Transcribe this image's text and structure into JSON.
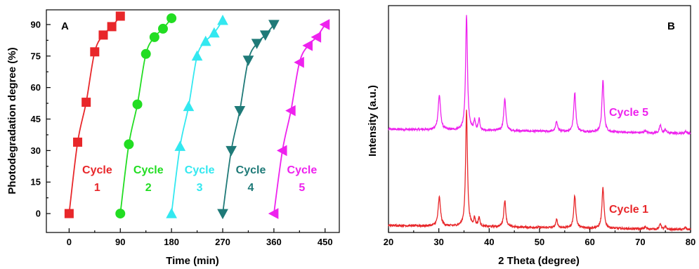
{
  "chart_data": [
    {
      "panel": "A",
      "type": "line",
      "xlabel": "Time (min)",
      "ylabel": "Photodegradation degree (%)",
      "xlim": [
        -40,
        475
      ],
      "ylim": [
        -9,
        97
      ],
      "xticks": [
        0,
        90,
        180,
        270,
        360,
        450
      ],
      "yticks": [
        0,
        15,
        30,
        45,
        60,
        75,
        90
      ],
      "grid": false,
      "series": [
        {
          "name": "Cycle 1",
          "color": "#e8272a",
          "marker": "square",
          "x": [
            0,
            15,
            30,
            45,
            60,
            75,
            90
          ],
          "y": [
            0,
            34,
            53,
            77,
            85,
            89,
            94
          ]
        },
        {
          "name": "Cycle 2",
          "color": "#22dd22",
          "marker": "circle",
          "x": [
            90,
            105,
            120,
            135,
            150,
            165,
            180
          ],
          "y": [
            0,
            33,
            52,
            76,
            84,
            88,
            93
          ]
        },
        {
          "name": "Cycle 3",
          "color": "#33e8f0",
          "marker": "triangle-up",
          "x": [
            180,
            195,
            210,
            225,
            240,
            255,
            270
          ],
          "y": [
            0,
            32,
            51,
            75,
            82,
            86,
            92
          ]
        },
        {
          "name": "Cycle 4",
          "color": "#1f7a78",
          "marker": "triangle-down",
          "x": [
            270,
            285,
            300,
            315,
            330,
            345,
            360
          ],
          "y": [
            0,
            30,
            49,
            73,
            81,
            85,
            90
          ]
        },
        {
          "name": "Cycle 5",
          "color": "#ee22ee",
          "marker": "triangle-left",
          "x": [
            360,
            375,
            390,
            405,
            420,
            435,
            450
          ],
          "y": [
            0,
            30,
            49,
            72,
            80,
            84,
            90
          ]
        }
      ],
      "annotations": [
        {
          "line1": "Cycle",
          "line2": "1",
          "color": "#e8272a"
        },
        {
          "line1": "Cycle",
          "line2": "2",
          "color": "#22dd22"
        },
        {
          "line1": "Cycle",
          "line2": "3",
          "color": "#33e8f0"
        },
        {
          "line1": "Cycle",
          "line2": "4",
          "color": "#1f7a78"
        },
        {
          "line1": "Cycle",
          "line2": "5",
          "color": "#ee22ee"
        }
      ]
    },
    {
      "panel": "B",
      "type": "line",
      "xlabel": "2 Theta (degree)",
      "ylabel": "Intensity (a.u.)",
      "xlim": [
        20,
        80
      ],
      "xticks": [
        20,
        30,
        40,
        50,
        60,
        70,
        80
      ],
      "yticks_labeled": false,
      "grid": false,
      "peaks_2theta": [
        30.1,
        35.5,
        37.1,
        38.0,
        43.1,
        53.4,
        57.0,
        62.6,
        71.0,
        74.0,
        75.0,
        79.0
      ],
      "series": [
        {
          "name": "Cycle 5",
          "color": "#ee22ee",
          "peak_heights": [
            0.3,
            1.0,
            0.08,
            0.1,
            0.28,
            0.09,
            0.34,
            0.45,
            0.02,
            0.07,
            0.03,
            0.02
          ]
        },
        {
          "name": "Cycle 1",
          "color": "#e8272a",
          "peak_heights": [
            0.25,
            1.0,
            0.07,
            0.08,
            0.23,
            0.07,
            0.28,
            0.35,
            0.02,
            0.05,
            0.02,
            0.02
          ]
        }
      ]
    }
  ]
}
